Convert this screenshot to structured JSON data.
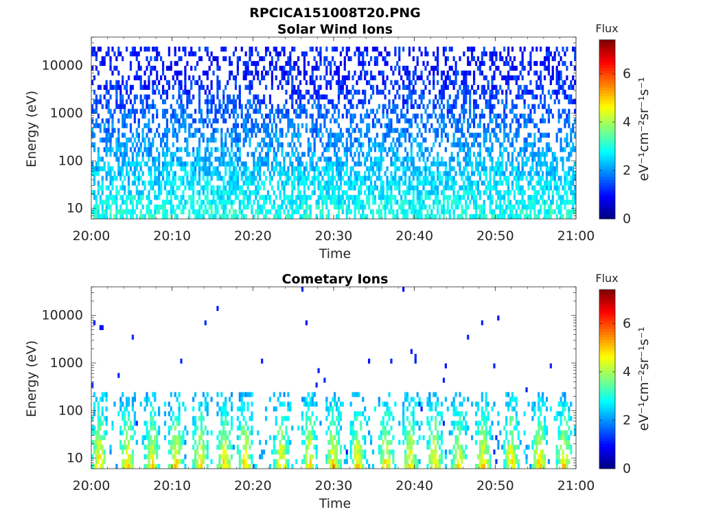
{
  "figure_title": "RPCICA151008T20.PNG",
  "chart_data": [
    {
      "type": "heatmap",
      "title": "Solar Wind Ions",
      "xlabel": "Time",
      "ylabel": "Energy (eV)",
      "x_ticks": [
        "20:00",
        "20:10",
        "20:20",
        "20:30",
        "20:40",
        "20:50",
        "21:00"
      ],
      "xlim": [
        "20:00",
        "21:00"
      ],
      "y_scale": "log",
      "y_ticks": [
        10,
        100,
        1000,
        10000
      ],
      "ylim": [
        6,
        40000
      ],
      "colorbar": {
        "label": "Flux",
        "unit": "eV⁻¹cm⁻²sr⁻¹s⁻¹",
        "ticks": [
          0,
          2,
          4,
          6
        ],
        "range": [
          0,
          7.4
        ],
        "colormap": "jet"
      },
      "pattern": {
        "low_energy_flux": 3.0,
        "high_energy_flux": 1.1,
        "max_energy": 20000,
        "density": 0.55
      }
    },
    {
      "type": "heatmap",
      "title": "Cometary Ions",
      "xlabel": "Time",
      "ylabel": "Energy (eV)",
      "x_ticks": [
        "20:00",
        "20:10",
        "20:20",
        "20:30",
        "20:40",
        "20:50",
        "21:00"
      ],
      "xlim": [
        "20:00",
        "21:00"
      ],
      "y_scale": "log",
      "y_ticks": [
        10,
        100,
        1000,
        10000
      ],
      "ylim": [
        6,
        40000
      ],
      "colorbar": {
        "label": "Flux",
        "unit": "eV⁻¹cm⁻²sr⁻¹s⁻¹",
        "ticks": [
          0,
          2,
          4,
          6
        ],
        "range": [
          0,
          7.4
        ],
        "colormap": "jet"
      },
      "pulse_minutes": [
        1,
        4.5,
        7.5,
        10.5,
        13.5,
        16.5,
        19,
        23.5,
        27,
        30,
        33,
        36.5,
        39.5,
        42.5,
        45.5,
        48.5,
        52,
        55.5,
        58.5
      ],
      "pattern": {
        "peak_flux": 5.2,
        "max_energy": 250
      }
    }
  ]
}
